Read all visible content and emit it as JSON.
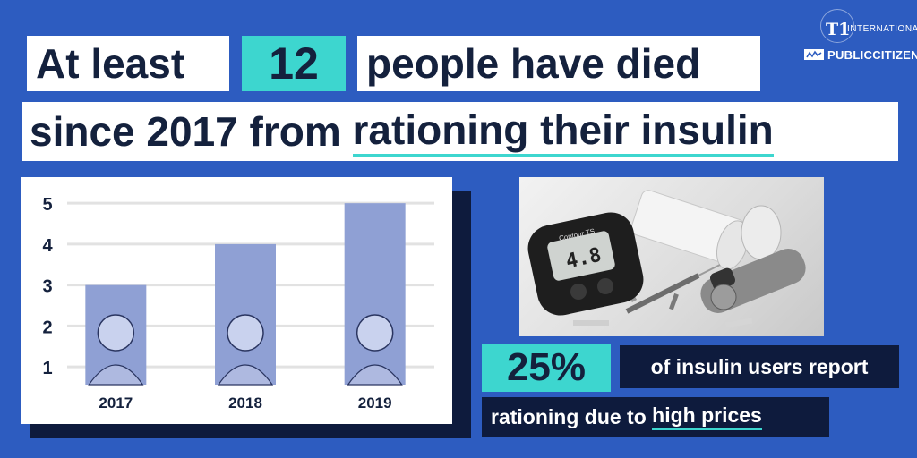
{
  "headline": {
    "part1": "At least",
    "number": "12",
    "part2": "people have died",
    "line2_prefix": "since 2017 from ",
    "line2_emphasis": "rationing their insulin"
  },
  "logo": {
    "t1_text": "T1",
    "international_text": "INTERNATIONAL",
    "publiccitizen_text": "PUBLICCITIZEN"
  },
  "chart_data": {
    "type": "bar",
    "categories": [
      "2017",
      "2018",
      "2019"
    ],
    "values": [
      3,
      4,
      5
    ],
    "yticks": [
      1,
      2,
      3,
      4,
      5
    ],
    "ylim": [
      0.5,
      5.2
    ],
    "title": "",
    "xlabel": "",
    "ylabel": "",
    "grid": true
  },
  "stat": {
    "percent": "25%",
    "text1": "of insulin users report",
    "text2_prefix": "rationing due to ",
    "text2_emphasis": "high prices"
  },
  "photo": {
    "meter_brand": "Contour TS",
    "meter_reading": "4.8"
  },
  "colors": {
    "background": "#2d5cc0",
    "navy": "#0e1b3d",
    "teal": "#3dd6cf",
    "bar": "#8fa0d4",
    "white": "#ffffff"
  }
}
